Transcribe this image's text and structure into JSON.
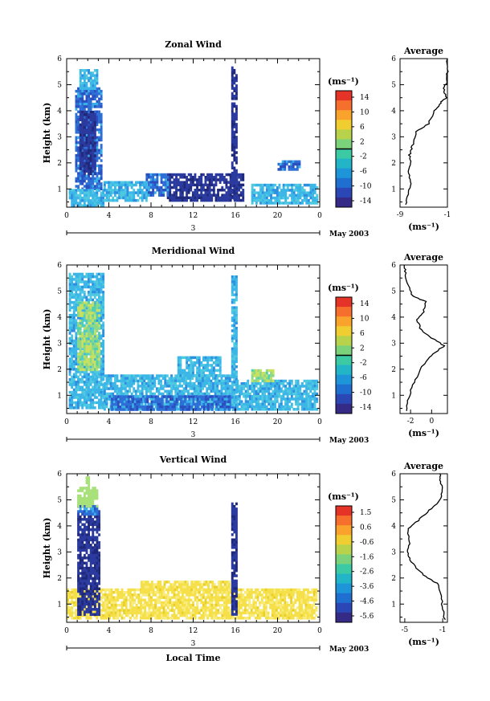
{
  "figure": {
    "xlabel": "Local Time",
    "date_label": "May 2003",
    "day_label": "3",
    "average_title": "Average",
    "unit_label": "(ms⁻¹)",
    "ylabel": "Height (km)"
  },
  "chart_data": [
    {
      "type": "heatmap",
      "title": "Zonal Wind",
      "xlabel": "Local Time",
      "ylabel": "Height (km)",
      "xlim": [
        0,
        24
      ],
      "ylim": [
        0.3,
        6
      ],
      "xticks": [
        "0",
        "4",
        "8",
        "12",
        "16",
        "20",
        "0"
      ],
      "yticks": [
        "1",
        "2",
        "3",
        "4",
        "5",
        "6"
      ],
      "colorbar": {
        "label": "(ms⁻¹)",
        "min": -15,
        "max": 15,
        "tick_labels": [
          "14",
          "10",
          "6",
          "2",
          "-2",
          "-6",
          "-10",
          "-14"
        ],
        "zero_line": true
      },
      "average": {
        "title": "Average",
        "xlabel": "(ms⁻¹)",
        "xticks": [
          "-9",
          "-1"
        ],
        "xlim": [
          -9,
          -1
        ],
        "profile": [
          [
            -8,
            0.4
          ],
          [
            -7.6,
            0.8
          ],
          [
            -7.2,
            1.2
          ],
          [
            -7.6,
            1.6
          ],
          [
            -7.2,
            2.0
          ],
          [
            -7.4,
            2.3
          ],
          [
            -7.0,
            2.6
          ],
          [
            -6.6,
            2.9
          ],
          [
            -6.2,
            3.2
          ],
          [
            -4.2,
            3.5
          ],
          [
            -3.2,
            4.0
          ],
          [
            -2.2,
            4.3
          ],
          [
            -1.2,
            4.5
          ],
          [
            -1.6,
            4.8
          ],
          [
            -1.2,
            5.1
          ],
          [
            -1.0,
            5.5
          ],
          [
            -1.0,
            6.0
          ]
        ]
      },
      "regions": [
        {
          "level": "neg_med",
          "t0": 0.8,
          "t1": 3.2,
          "h0": 1.0,
          "h1": 4.9
        },
        {
          "level": "neg_light",
          "t0": 1.2,
          "t1": 2.8,
          "h0": 4.9,
          "h1": 5.6
        },
        {
          "level": "neg_strong",
          "t0": 1.2,
          "t1": 2.6,
          "h0": 1.6,
          "h1": 4.0
        },
        {
          "level": "neg_light",
          "t0": 0.2,
          "t1": 3.5,
          "h0": 0.4,
          "h1": 1.0
        },
        {
          "level": "neg_strong",
          "t0": 9.5,
          "t1": 16.8,
          "h0": 0.6,
          "h1": 1.6
        },
        {
          "level": "neg_med",
          "t0": 7.5,
          "t1": 9.5,
          "h0": 0.8,
          "h1": 1.6
        },
        {
          "level": "neg_light",
          "t0": 3.5,
          "t1": 7.5,
          "h0": 0.6,
          "h1": 1.3
        },
        {
          "level": "neg_strong",
          "t0": 15.6,
          "t1": 16.1,
          "h0": 0.6,
          "h1": 5.7
        },
        {
          "level": "neg_light",
          "t0": 17.5,
          "t1": 23.7,
          "h0": 0.5,
          "h1": 1.2
        },
        {
          "level": "neg_med",
          "t0": 20.0,
          "t1": 22.0,
          "h0": 1.8,
          "h1": 2.1
        }
      ]
    },
    {
      "type": "heatmap",
      "title": "Meridional Wind",
      "xlabel": "Local Time",
      "ylabel": "Height (km)",
      "xlim": [
        0,
        24
      ],
      "ylim": [
        0.3,
        6
      ],
      "xticks": [
        "0",
        "4",
        "8",
        "12",
        "16",
        "20",
        "0"
      ],
      "yticks": [
        "1",
        "2",
        "3",
        "4",
        "5",
        "6"
      ],
      "colorbar": {
        "label": "(ms⁻¹)",
        "min": -15,
        "max": 15,
        "tick_labels": [
          "14",
          "10",
          "6",
          "2",
          "-2",
          "-6",
          "-10",
          "-14"
        ],
        "zero_line": true
      },
      "average": {
        "title": "Average",
        "xlabel": "(ms⁻¹)",
        "xticks": [
          "-2",
          "0"
        ],
        "xlim": [
          -3,
          1.5
        ],
        "profile": [
          [
            -2.4,
            0.4
          ],
          [
            -2.2,
            0.9
          ],
          [
            -1.8,
            1.4
          ],
          [
            -1.2,
            1.9
          ],
          [
            -0.4,
            2.4
          ],
          [
            0.5,
            2.7
          ],
          [
            1.2,
            2.9
          ],
          [
            0.0,
            3.2
          ],
          [
            -1.0,
            3.5
          ],
          [
            -1.4,
            3.9
          ],
          [
            -0.8,
            4.2
          ],
          [
            -0.6,
            4.6
          ],
          [
            -1.8,
            4.8
          ],
          [
            -2.2,
            5.2
          ],
          [
            -2.5,
            5.7
          ],
          [
            -2.6,
            6.0
          ]
        ]
      },
      "regions": [
        {
          "level": "neg_light",
          "t0": 0.2,
          "t1": 3.5,
          "h0": 0.5,
          "h1": 5.7
        },
        {
          "level": "near_zero",
          "t0": 1.0,
          "t1": 3.0,
          "h0": 2.0,
          "h1": 4.6
        },
        {
          "level": "neg_light",
          "t0": 3.5,
          "t1": 15.5,
          "h0": 0.5,
          "h1": 1.8
        },
        {
          "level": "neg_med",
          "t0": 4.0,
          "t1": 16.0,
          "h0": 0.5,
          "h1": 1.0
        },
        {
          "level": "neg_light",
          "t0": 10.5,
          "t1": 14.5,
          "h0": 1.8,
          "h1": 2.5
        },
        {
          "level": "neg_light",
          "t0": 15.6,
          "t1": 16.1,
          "h0": 0.6,
          "h1": 5.6
        },
        {
          "level": "neg_light",
          "t0": 16.1,
          "t1": 23.7,
          "h0": 0.5,
          "h1": 1.6
        },
        {
          "level": "near_zero",
          "t0": 17.5,
          "t1": 19.5,
          "h0": 1.6,
          "h1": 2.0
        }
      ]
    },
    {
      "type": "heatmap",
      "title": "Vertical Wind",
      "xlabel": "Local Time",
      "ylabel": "Height (km)",
      "xlim": [
        0,
        24
      ],
      "ylim": [
        0.3,
        6
      ],
      "xticks": [
        "0",
        "4",
        "8",
        "12",
        "16",
        "20",
        "0"
      ],
      "yticks": [
        "1",
        "2",
        "3",
        "4",
        "5",
        "6"
      ],
      "colorbar": {
        "label": "(ms⁻¹)",
        "min": -6,
        "max": 2,
        "tick_labels": [
          "1.5",
          "0.6",
          "-0.6",
          "-1.6",
          "-2.6",
          "-3.6",
          "-4.6",
          "-5.6"
        ],
        "zero_line": false
      },
      "average": {
        "title": "Average",
        "xlabel": "(ms⁻¹)",
        "xticks": [
          "-5",
          "-1"
        ],
        "xlim": [
          -5.5,
          -0.5
        ],
        "profile": [
          [
            -0.8,
            0.4
          ],
          [
            -1.0,
            0.9
          ],
          [
            -1.2,
            1.4
          ],
          [
            -1.6,
            1.8
          ],
          [
            -2.6,
            2.0
          ],
          [
            -3.6,
            2.3
          ],
          [
            -4.4,
            2.7
          ],
          [
            -4.8,
            3.0
          ],
          [
            -4.5,
            3.4
          ],
          [
            -4.7,
            3.9
          ],
          [
            -3.6,
            4.2
          ],
          [
            -2.4,
            4.6
          ],
          [
            -1.4,
            4.9
          ],
          [
            -1.0,
            5.3
          ],
          [
            -1.2,
            5.7
          ],
          [
            -1.3,
            6.0
          ]
        ]
      },
      "regions": [
        {
          "level": "pos_yellow",
          "t0": 0.0,
          "t1": 23.7,
          "h0": 0.5,
          "h1": 1.6
        },
        {
          "level": "pos_yellow",
          "t0": 7.0,
          "t1": 15.5,
          "h0": 1.6,
          "h1": 1.9
        },
        {
          "level": "neg_strong",
          "t0": 1.0,
          "t1": 3.0,
          "h0": 0.6,
          "h1": 4.5
        },
        {
          "level": "neg_med",
          "t0": 1.0,
          "t1": 3.0,
          "h0": 4.5,
          "h1": 4.8
        },
        {
          "level": "mid_green",
          "t0": 1.0,
          "t1": 2.8,
          "h0": 4.8,
          "h1": 5.5
        },
        {
          "level": "mid_green",
          "t0": 1.8,
          "t1": 2.1,
          "h0": 5.5,
          "h1": 5.9
        },
        {
          "level": "neg_strong",
          "t0": 15.6,
          "t1": 16.0,
          "h0": 0.6,
          "h1": 4.9
        }
      ]
    }
  ]
}
